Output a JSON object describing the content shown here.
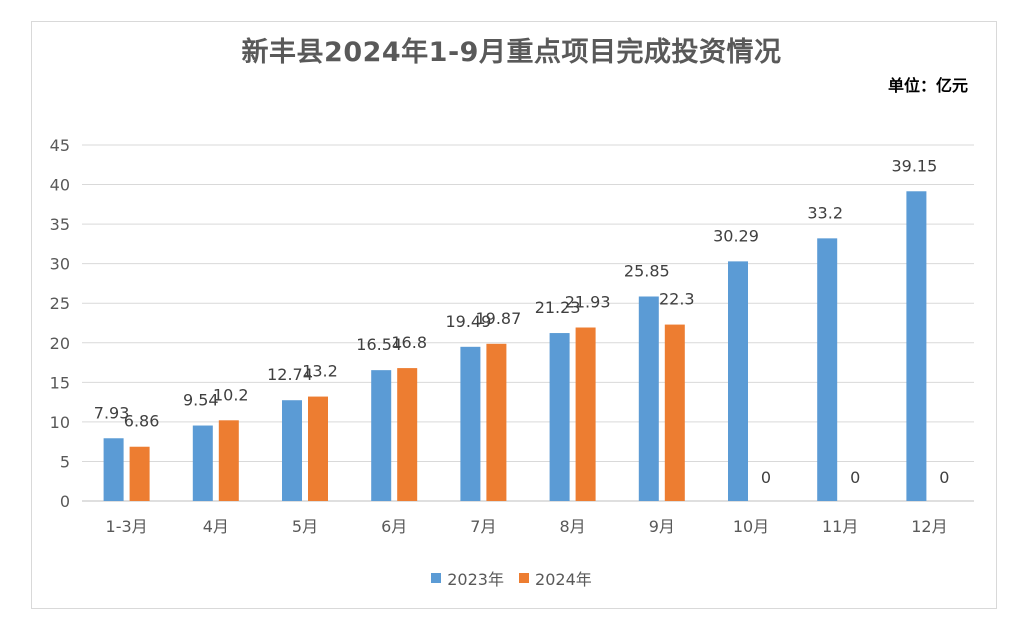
{
  "chart_data": {
    "type": "bar",
    "title": "新丰县2024年1-9月重点项目完成投资情况",
    "unit_label": "单位：亿元",
    "categories": [
      "1-3月",
      "4月",
      "5月",
      "6月",
      "7月",
      "8月",
      "9月",
      "10月",
      "11月",
      "12月"
    ],
    "series": [
      {
        "name": "2023年",
        "color": "#5b9bd5",
        "values": [
          7.93,
          9.54,
          12.74,
          16.54,
          19.49,
          21.23,
          25.85,
          30.29,
          33.2,
          39.15
        ]
      },
      {
        "name": "2024年",
        "color": "#ed7d31",
        "values": [
          6.86,
          10.2,
          13.2,
          16.8,
          19.87,
          21.93,
          22.3,
          0,
          0,
          0
        ]
      }
    ],
    "ylim": [
      0,
      45
    ],
    "yticks": [
      0,
      5,
      10,
      15,
      20,
      25,
      30,
      35,
      40,
      45
    ],
    "grid": true,
    "legend_position": "bottom"
  }
}
